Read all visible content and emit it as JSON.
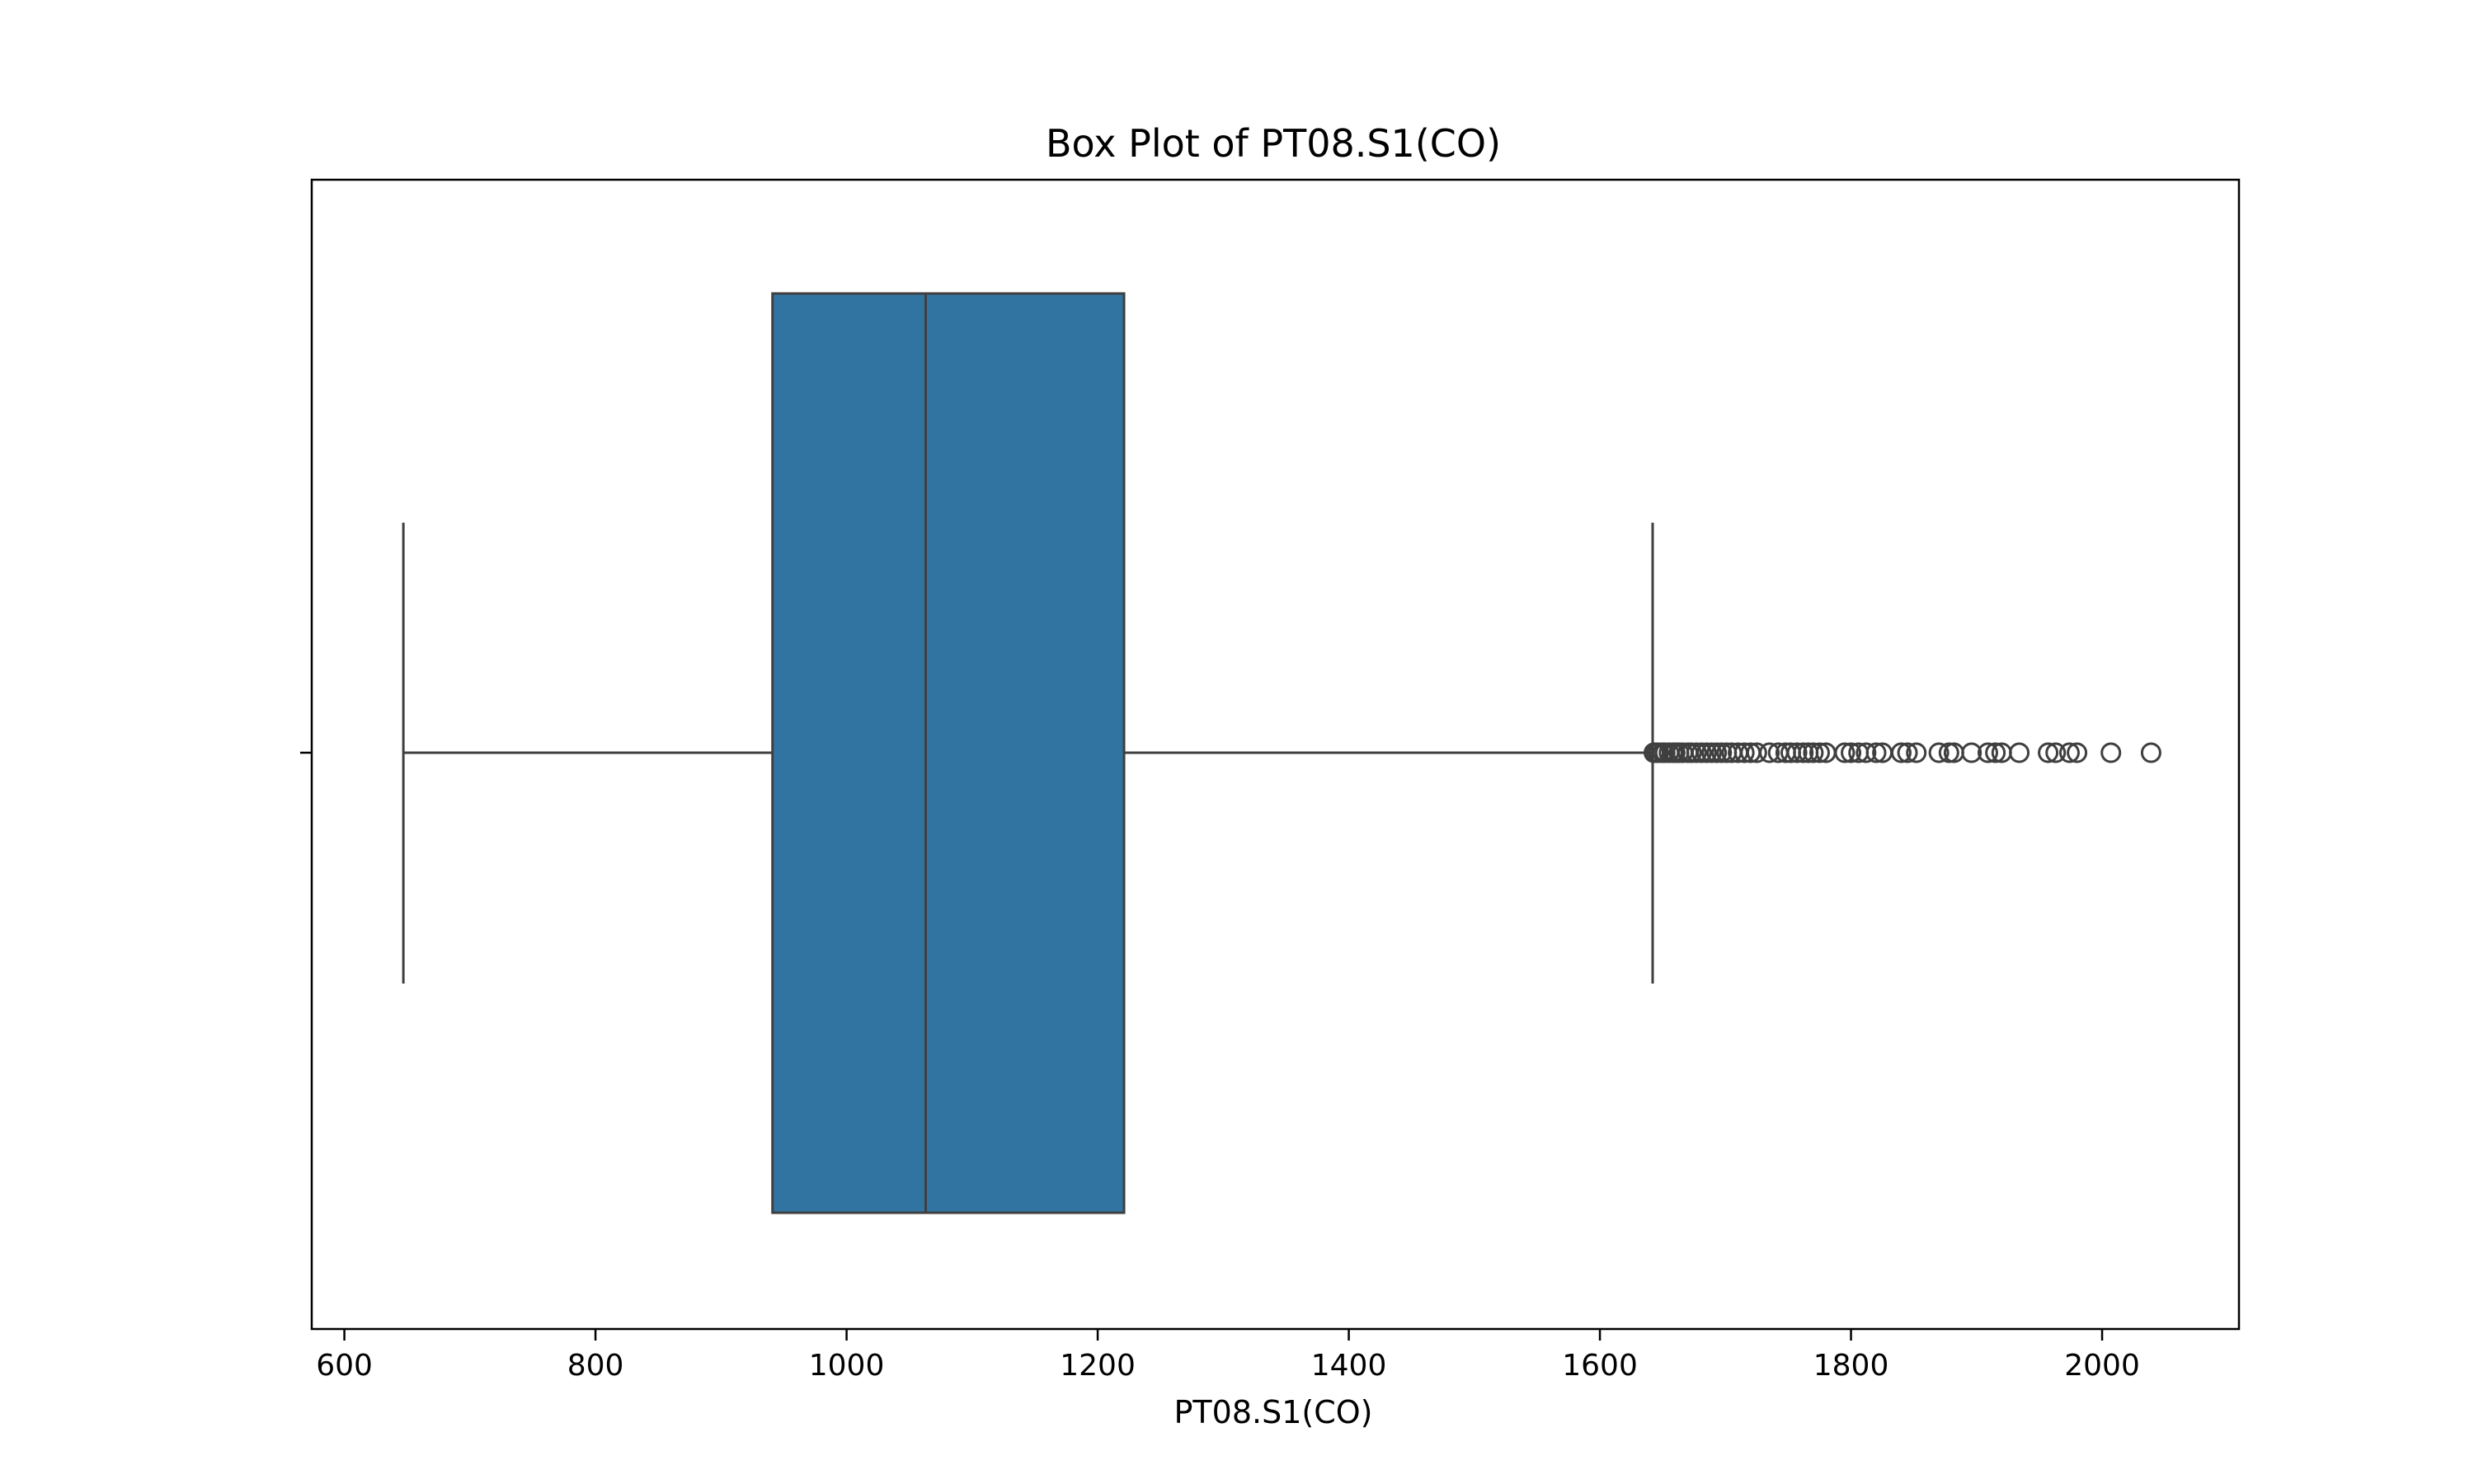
{
  "chart_data": {
    "type": "box",
    "orientation": "horizontal",
    "title": "Box Plot of PT08.S1(CO)",
    "xlabel": "PT08.S1(CO)",
    "ylabel": "",
    "xlim": [
      574,
      2109
    ],
    "x_ticks": [
      600,
      800,
      1000,
      1200,
      1400,
      1600,
      1800,
      2000
    ],
    "x_tick_labels": [
      "600",
      "800",
      "1000",
      "1200",
      "1400",
      "1600",
      "1800",
      "2000"
    ],
    "grid": false,
    "box": {
      "whisker_low": 647,
      "q1": 941,
      "median": 1063,
      "q3": 1221,
      "whisker_high": 1642,
      "fill_color": "#3274a1",
      "line_color": "#3f3f3f"
    },
    "outliers": [
      1643,
      1645,
      1647,
      1650,
      1652,
      1655,
      1658,
      1660,
      1663,
      1666,
      1670,
      1673,
      1677,
      1681,
      1685,
      1689,
      1693,
      1697,
      1701,
      1705,
      1710,
      1715,
      1720,
      1725,
      1735,
      1742,
      1748,
      1752,
      1757,
      1762,
      1766,
      1770,
      1775,
      1780,
      1795,
      1800,
      1806,
      1812,
      1820,
      1825,
      1840,
      1845,
      1852,
      1870,
      1878,
      1882,
      1896,
      1909,
      1915,
      1920,
      1934,
      1957,
      1963,
      1974,
      1980,
      2007,
      2039
    ]
  }
}
